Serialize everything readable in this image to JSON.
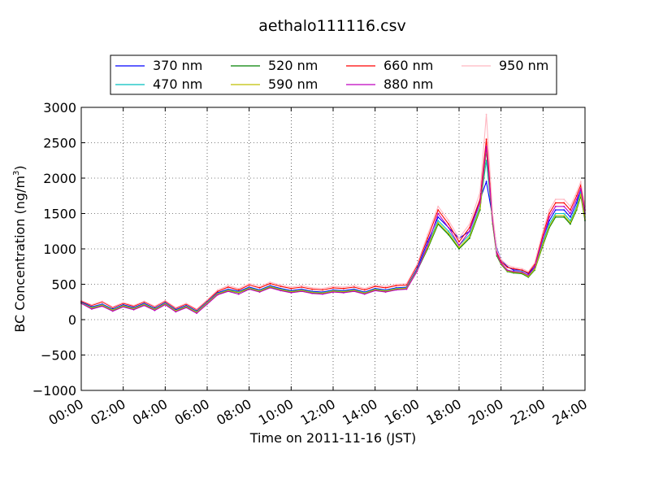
{
  "chart_data": {
    "type": "line",
    "title": "aethalo111116.csv",
    "xlabel": "Time on 2011-11-16 (JST)",
    "ylabel_main": "BC Concentration (ng/m",
    "ylabel_sup": "3",
    "ylabel_close": ")",
    "xlim_hours": [
      0,
      24
    ],
    "ylim": [
      -1000,
      3000
    ],
    "x_ticks": [
      "00:00",
      "02:00",
      "04:00",
      "06:00",
      "08:00",
      "10:00",
      "12:00",
      "14:00",
      "16:00",
      "18:00",
      "20:00",
      "22:00",
      "24:00"
    ],
    "y_ticks": [
      -1000,
      -500,
      0,
      500,
      1000,
      1500,
      2000,
      2500,
      3000
    ],
    "grid": true,
    "legend_position": "top",
    "x_hours": [
      0,
      0.5,
      1,
      1.5,
      2,
      2.5,
      3,
      3.5,
      4,
      4.5,
      5,
      5.5,
      6,
      6.5,
      7,
      7.5,
      8,
      8.5,
      9,
      9.5,
      10,
      10.5,
      11,
      11.5,
      12,
      12.5,
      13,
      13.5,
      14,
      14.5,
      15,
      15.5,
      16,
      16.5,
      17,
      17.5,
      18,
      18.5,
      19,
      19.3,
      19.6,
      19.8,
      20,
      20.3,
      20.6,
      21,
      21.3,
      21.6,
      22,
      22.3,
      22.6,
      23,
      23.3,
      23.6,
      23.8,
      24
    ],
    "series": [
      {
        "name": "370 nm",
        "color": "#0000ff",
        "values": [
          250,
          180,
          220,
          150,
          210,
          170,
          230,
          160,
          240,
          140,
          200,
          120,
          250,
          380,
          430,
          400,
          460,
          420,
          480,
          440,
          410,
          430,
          400,
          390,
          420,
          410,
          430,
          390,
          440,
          420,
          450,
          460,
          720,
          1100,
          1450,
          1300,
          1150,
          1250,
          1700,
          1950,
          1450,
          1000,
          850,
          750,
          700,
          700,
          650,
          750,
          1150,
          1400,
          1550,
          1550,
          1450,
          1650,
          1850,
          1500
        ]
      },
      {
        "name": "470 nm",
        "color": "#00bfbf",
        "values": [
          240,
          170,
          210,
          140,
          200,
          160,
          220,
          150,
          230,
          130,
          190,
          110,
          240,
          370,
          420,
          390,
          450,
          410,
          470,
          430,
          400,
          420,
          390,
          380,
          410,
          400,
          420,
          380,
          430,
          410,
          440,
          450,
          700,
          1050,
          1400,
          1250,
          1050,
          1200,
          1600,
          2250,
          1400,
          950,
          800,
          700,
          680,
          680,
          620,
          720,
          1100,
          1350,
          1500,
          1500,
          1400,
          1600,
          1800,
          1450
        ]
      },
      {
        "name": "520 nm",
        "color": "#008000",
        "values": [
          230,
          160,
          200,
          130,
          190,
          150,
          210,
          140,
          220,
          120,
          180,
          100,
          230,
          360,
          410,
          380,
          440,
          400,
          460,
          420,
          390,
          410,
          380,
          370,
          400,
          390,
          410,
          370,
          420,
          400,
          430,
          440,
          690,
          1000,
          1350,
          1200,
          1000,
          1150,
          1550,
          2400,
          1350,
          900,
          780,
          680,
          660,
          650,
          600,
          700,
          1050,
          1300,
          1450,
          1450,
          1350,
          1550,
          1750,
          1400
        ]
      },
      {
        "name": "590 nm",
        "color": "#bfbf00",
        "values": [
          235,
          165,
          205,
          135,
          195,
          155,
          215,
          145,
          225,
          125,
          185,
          105,
          235,
          365,
          415,
          385,
          445,
          405,
          465,
          425,
          395,
          415,
          385,
          375,
          405,
          395,
          415,
          375,
          425,
          405,
          435,
          445,
          695,
          1020,
          1370,
          1220,
          1020,
          1170,
          1570,
          2420,
          1370,
          920,
          790,
          690,
          670,
          660,
          610,
          710,
          1070,
          1320,
          1470,
          1470,
          1370,
          1570,
          1770,
          1420
        ]
      },
      {
        "name": "660 nm",
        "color": "#ff0000",
        "values": [
          260,
          200,
          250,
          170,
          230,
          190,
          250,
          180,
          260,
          160,
          220,
          140,
          270,
          400,
          460,
          420,
          490,
          450,
          510,
          470,
          440,
          460,
          430,
          420,
          450,
          440,
          460,
          420,
          470,
          450,
          480,
          490,
          760,
          1150,
          1550,
          1350,
          1100,
          1300,
          1700,
          2550,
          1450,
          950,
          820,
          740,
          720,
          700,
          660,
          780,
          1200,
          1500,
          1650,
          1650,
          1550,
          1750,
          1900,
          1550
        ]
      },
      {
        "name": "880 nm",
        "color": "#bf00bf",
        "values": [
          230,
          150,
          190,
          120,
          180,
          140,
          200,
          130,
          210,
          110,
          170,
          90,
          220,
          350,
          400,
          360,
          430,
          390,
          450,
          410,
          380,
          400,
          370,
          360,
          390,
          380,
          400,
          360,
          410,
          390,
          420,
          430,
          680,
          1050,
          1500,
          1300,
          1050,
          1250,
          1650,
          2450,
          1400,
          930,
          800,
          700,
          680,
          670,
          630,
          740,
          1150,
          1450,
          1600,
          1600,
          1500,
          1700,
          1850,
          1500
        ]
      },
      {
        "name": "950 nm",
        "color": "#ffb6c1",
        "values": [
          270,
          210,
          260,
          180,
          240,
          200,
          260,
          190,
          270,
          170,
          230,
          150,
          280,
          420,
          480,
          440,
          510,
          470,
          530,
          490,
          460,
          480,
          450,
          440,
          470,
          460,
          480,
          440,
          490,
          470,
          500,
          510,
          780,
          1200,
          1600,
          1400,
          1150,
          1350,
          1800,
          2900,
          1500,
          980,
          850,
          770,
          740,
          720,
          680,
          800,
          1250,
          1550,
          1700,
          1700,
          1600,
          1800,
          1950,
          1600
        ]
      }
    ]
  }
}
